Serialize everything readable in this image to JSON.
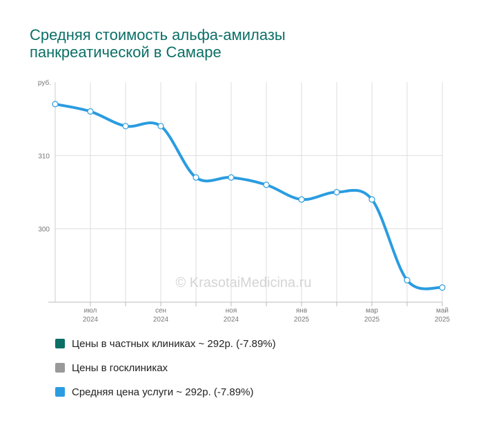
{
  "title_line1": "Средняя стоимость альфа-амилазы",
  "title_line2": "панкреатической в Самаре",
  "watermark": "© KrasotaiMedicina.ru",
  "colors": {
    "title": "#0b6f66",
    "private": "#0b6f66",
    "public": "#999999",
    "average": "#2a9ce0"
  },
  "chart_data": {
    "type": "line",
    "ylabel": "руб.",
    "ylim": [
      290,
      320
    ],
    "y_ticks": [
      300,
      310
    ],
    "x_tick_labels": [
      {
        "month": "июл",
        "year": "2024"
      },
      {
        "month": "сен",
        "year": "2024"
      },
      {
        "month": "ноя",
        "year": "2024"
      },
      {
        "month": "янв",
        "year": "2025"
      },
      {
        "month": "мар",
        "year": "2025"
      },
      {
        "month": "май",
        "year": "2025"
      }
    ],
    "x": [
      "2024-06",
      "2024-07",
      "2024-08",
      "2024-09",
      "2024-10",
      "2024-11",
      "2024-12",
      "2025-01",
      "2025-02",
      "2025-03",
      "2025-04",
      "2025-05"
    ],
    "series": [
      {
        "name": "Средняя цена услуги",
        "values": [
          317,
          316,
          314,
          314,
          307,
          307,
          306,
          304,
          305,
          304,
          293,
          292
        ]
      }
    ],
    "grid": true,
    "legend": [
      {
        "label": "Цены в частных клиниках ~ 292р. (-7.89%)",
        "color": "#0b6f66"
      },
      {
        "label": "Цены в госклиниках",
        "color": "#999999"
      },
      {
        "label": "Средняя цена услуги ~ 292р. (-7.89%)",
        "color": "#2a9ce0"
      }
    ]
  }
}
